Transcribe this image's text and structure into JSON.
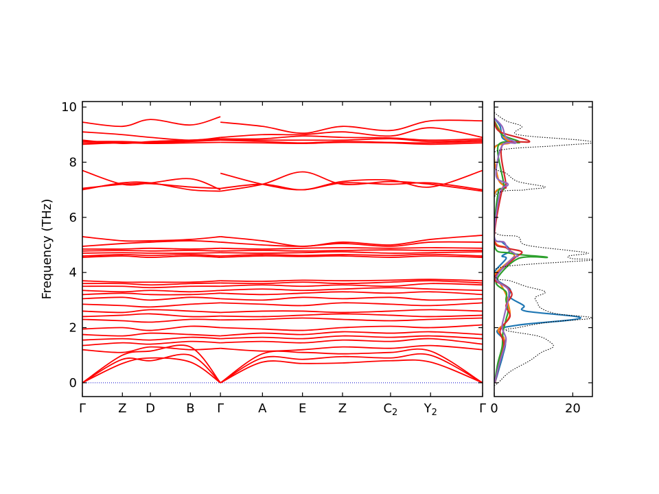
{
  "chart_data": [
    {
      "type": "line",
      "name": "phonon-band-structure",
      "ylabel": "Frequency (THz)",
      "ylim": [
        -0.5,
        10.2
      ],
      "yticks": [
        0,
        2,
        4,
        6,
        8,
        10
      ],
      "xlim": [
        0,
        10
      ],
      "kpoints": [
        {
          "label": "Γ",
          "x": 0
        },
        {
          "label": "Z",
          "x": 1
        },
        {
          "label": "D",
          "x": 1.7
        },
        {
          "label": "B",
          "x": 2.7
        },
        {
          "label": "Γ",
          "x": 3.45
        },
        {
          "label": "A",
          "x": 4.5
        },
        {
          "label": "E",
          "x": 5.5
        },
        {
          "label": "Z",
          "x": 6.5
        },
        {
          "label": "C",
          "sub": "2",
          "x": 7.7
        },
        {
          "label": "Y",
          "sub": "2",
          "x": 8.7
        },
        {
          "label": "Γ",
          "x": 10
        }
      ],
      "zero_line": {
        "y": 0,
        "color": "#0000cc",
        "style": "dotted"
      },
      "band_color": "#ff0000",
      "segments": [
        {
          "x": [
            0,
            1,
            1.7,
            2.7,
            3.45
          ],
          "bands": [
            [
              0,
              0.7,
              0.9,
              0.75,
              0
            ],
            [
              0,
              0.85,
              0.8,
              1.0,
              0
            ],
            [
              0,
              1.0,
              1.15,
              1.3,
              0
            ],
            [
              1.2,
              1.1,
              1.3,
              1.2,
              1.25
            ],
            [
              1.35,
              1.45,
              1.4,
              1.5,
              1.45
            ],
            [
              1.55,
              1.6,
              1.55,
              1.65,
              1.6
            ],
            [
              1.75,
              1.7,
              1.8,
              1.75,
              1.7
            ],
            [
              1.95,
              2.0,
              1.9,
              2.05,
              2.0
            ],
            [
              2.3,
              2.25,
              2.2,
              2.3,
              2.28
            ],
            [
              2.4,
              2.45,
              2.5,
              2.4,
              2.42
            ],
            [
              2.6,
              2.55,
              2.65,
              2.6,
              2.55
            ],
            [
              2.85,
              2.8,
              2.75,
              2.85,
              2.9
            ],
            [
              3.05,
              3.1,
              3.0,
              3.1,
              3.05
            ],
            [
              3.2,
              3.25,
              3.2,
              3.2,
              3.25
            ],
            [
              3.35,
              3.3,
              3.35,
              3.3,
              3.35
            ],
            [
              3.5,
              3.5,
              3.45,
              3.5,
              3.5
            ],
            [
              3.6,
              3.6,
              3.55,
              3.6,
              3.62
            ],
            [
              3.7,
              3.65,
              3.65,
              3.65,
              3.7
            ],
            [
              4.55,
              4.6,
              4.55,
              4.6,
              4.55
            ],
            [
              4.6,
              4.65,
              4.62,
              4.65,
              4.6
            ],
            [
              4.7,
              4.72,
              4.7,
              4.7,
              4.72
            ],
            [
              4.78,
              4.8,
              4.78,
              4.8,
              4.78
            ],
            [
              4.85,
              4.85,
              4.88,
              4.85,
              4.88
            ],
            [
              4.95,
              5.05,
              5.1,
              5.15,
              5.1
            ],
            [
              5.3,
              5.15,
              5.15,
              5.2,
              5.3
            ],
            [
              7.0,
              7.25,
              7.25,
              7.0,
              6.95
            ],
            [
              7.05,
              7.2,
              7.22,
              7.1,
              7.05
            ],
            [
              7.7,
              7.2,
              7.25,
              7.4,
              7.0
            ],
            [
              8.65,
              8.7,
              8.68,
              8.7,
              8.72
            ],
            [
              8.7,
              8.72,
              8.7,
              8.75,
              8.8
            ],
            [
              8.75,
              8.75,
              8.72,
              8.78,
              8.82
            ],
            [
              8.8,
              8.68,
              8.75,
              8.8,
              8.85
            ],
            [
              9.1,
              9.0,
              8.9,
              8.8,
              8.9
            ],
            [
              9.45,
              9.3,
              9.55,
              9.35,
              9.65
            ]
          ]
        },
        {
          "x": [
            3.45,
            4.5,
            5.5,
            6.5,
            7.7,
            8.7,
            10
          ],
          "bands": [
            [
              0,
              0.75,
              0.7,
              0.72,
              0.8,
              0.75,
              0
            ],
            [
              0,
              0.9,
              0.85,
              0.95,
              0.9,
              1.0,
              0
            ],
            [
              0,
              1.05,
              1.1,
              1.05,
              1.1,
              1.15,
              0
            ],
            [
              1.25,
              1.15,
              1.2,
              1.3,
              1.25,
              1.35,
              1.2
            ],
            [
              1.45,
              1.5,
              1.45,
              1.55,
              1.5,
              1.6,
              1.4
            ],
            [
              1.6,
              1.65,
              1.6,
              1.7,
              1.65,
              1.7,
              1.6
            ],
            [
              1.7,
              1.8,
              1.75,
              1.85,
              1.8,
              1.85,
              1.75
            ],
            [
              2.0,
              1.95,
              1.9,
              2.0,
              2.05,
              2.0,
              2.1
            ],
            [
              2.28,
              2.3,
              2.35,
              2.3,
              2.25,
              2.3,
              2.35
            ],
            [
              2.42,
              2.4,
              2.45,
              2.5,
              2.45,
              2.4,
              2.45
            ],
            [
              2.55,
              2.6,
              2.6,
              2.55,
              2.6,
              2.65,
              2.6
            ],
            [
              2.9,
              2.85,
              2.8,
              2.9,
              2.85,
              2.8,
              2.9
            ],
            [
              3.05,
              3.0,
              3.1,
              3.05,
              3.1,
              3.0,
              3.05
            ],
            [
              3.25,
              3.2,
              3.25,
              3.3,
              3.25,
              3.3,
              3.2
            ],
            [
              3.35,
              3.4,
              3.35,
              3.4,
              3.45,
              3.4,
              3.35
            ],
            [
              3.5,
              3.55,
              3.5,
              3.55,
              3.5,
              3.6,
              3.55
            ],
            [
              3.62,
              3.6,
              3.65,
              3.6,
              3.65,
              3.7,
              3.62
            ],
            [
              3.7,
              3.68,
              3.72,
              3.7,
              3.72,
              3.75,
              3.7
            ],
            [
              4.55,
              4.6,
              4.58,
              4.6,
              4.55,
              4.6,
              4.55
            ],
            [
              4.6,
              4.65,
              4.62,
              4.65,
              4.62,
              4.66,
              4.6
            ],
            [
              4.72,
              4.7,
              4.72,
              4.75,
              4.7,
              4.72,
              4.75
            ],
            [
              4.78,
              4.8,
              4.78,
              4.8,
              4.82,
              4.8,
              4.8
            ],
            [
              4.88,
              4.85,
              4.88,
              4.9,
              4.88,
              4.9,
              4.88
            ],
            [
              5.1,
              5.0,
              4.95,
              5.05,
              4.95,
              5.1,
              5.1
            ],
            [
              5.3,
              5.15,
              4.95,
              5.1,
              5.0,
              5.2,
              5.35
            ],
            [
              6.95,
              7.2,
              7.65,
              7.2,
              7.3,
              7.2,
              6.95
            ],
            [
              7.05,
              7.2,
              7.0,
              7.25,
              7.2,
              7.25,
              7.0
            ],
            [
              7.6,
              7.2,
              7.0,
              7.3,
              7.35,
              7.1,
              7.7
            ],
            [
              8.72,
              8.7,
              8.68,
              8.72,
              8.7,
              8.65,
              8.7
            ],
            [
              8.8,
              8.75,
              8.7,
              8.75,
              8.72,
              8.7,
              8.75
            ],
            [
              8.82,
              8.8,
              8.8,
              8.8,
              8.85,
              8.75,
              8.8
            ],
            [
              8.85,
              8.85,
              8.95,
              8.9,
              8.88,
              8.8,
              8.85
            ],
            [
              8.9,
              9.0,
              9.0,
              9.1,
              8.95,
              9.25,
              8.9
            ],
            [
              9.45,
              9.3,
              9.05,
              9.3,
              9.15,
              9.5,
              9.5
            ]
          ]
        }
      ]
    },
    {
      "type": "line",
      "name": "phonon-dos",
      "xlim": [
        0,
        25
      ],
      "xticks": [
        0,
        20
      ],
      "ylim": [
        -0.5,
        10.2
      ],
      "total": {
        "color": "#000000",
        "style": "dotted",
        "freq": [
          -0.1,
          0.0,
          0.4,
          0.8,
          1.1,
          1.3,
          1.5,
          1.7,
          1.9,
          2.0,
          2.2,
          2.35,
          2.5,
          2.7,
          2.9,
          3.1,
          3.3,
          3.5,
          3.7,
          3.8,
          4.2,
          4.45,
          4.5,
          4.6,
          4.7,
          4.8,
          5.0,
          5.3,
          5.5,
          6.8,
          7.0,
          7.1,
          7.3,
          7.6,
          7.8,
          8.4,
          8.6,
          8.7,
          8.8,
          9.0,
          9.3,
          9.5,
          9.8
        ],
        "dos": [
          0.0,
          1.0,
          4.0,
          9.0,
          12.0,
          15.0,
          14.0,
          11.0,
          3.0,
          6.0,
          14.0,
          25.0,
          16.0,
          12.0,
          11.0,
          10.5,
          13.0,
          8.0,
          4.0,
          0.5,
          2.0,
          25.0,
          20.0,
          19.0,
          24.0,
          19.0,
          8.0,
          6.0,
          0.0,
          0.3,
          8.0,
          13.0,
          6.0,
          3.0,
          0.0,
          0.5,
          16.0,
          25.0,
          22.0,
          6.0,
          7.0,
          3.0,
          0.0
        ]
      },
      "partials": [
        {
          "color": "#1f77b4",
          "freq": [
            0.0,
            0.5,
            1.0,
            1.5,
            1.9,
            2.1,
            2.35,
            2.6,
            2.8,
            3.1,
            3.4,
            3.7,
            4.0,
            4.5,
            4.6,
            4.8,
            5.1,
            5.3,
            6.8,
            7.1,
            7.4,
            8.5,
            8.7,
            8.9,
            9.3,
            9.6
          ],
          "dos": [
            0.2,
            1.2,
            2.2,
            2.8,
            0.8,
            6.5,
            22.0,
            8.0,
            7.5,
            4.0,
            4.0,
            1.0,
            0.0,
            3.0,
            2.0,
            4.0,
            2.0,
            0.0,
            0.0,
            3.0,
            1.0,
            0.0,
            3.5,
            2.0,
            1.5,
            0.0
          ]
        },
        {
          "color": "#ff7f0e",
          "freq": [
            0.0,
            0.6,
            1.1,
            1.6,
            1.9,
            2.2,
            2.5,
            2.9,
            3.2,
            3.6,
            3.9,
            4.5,
            4.65,
            4.9,
            5.2,
            6.8,
            7.1,
            7.4,
            8.5,
            8.7,
            8.9,
            9.5
          ],
          "dos": [
            0.2,
            1.0,
            1.8,
            2.5,
            1.0,
            3.0,
            4.0,
            3.5,
            3.0,
            1.5,
            0.0,
            4.5,
            5.0,
            3.0,
            0.0,
            0.0,
            2.5,
            1.0,
            0.0,
            4.0,
            2.5,
            0.0
          ]
        },
        {
          "color": "#2ca02c",
          "freq": [
            0.0,
            0.7,
            1.3,
            1.8,
            2.3,
            2.6,
            3.0,
            3.3,
            3.7,
            4.5,
            4.55,
            4.7,
            5.0,
            6.9,
            7.1,
            8.6,
            8.72,
            9.0,
            9.5
          ],
          "dos": [
            0.1,
            0.9,
            2.0,
            2.2,
            3.0,
            3.5,
            3.0,
            3.0,
            0.5,
            6.0,
            13.5,
            4.0,
            0.0,
            1.0,
            2.5,
            1.0,
            6.5,
            2.0,
            0.0
          ]
        },
        {
          "color": "#d62728",
          "freq": [
            0.0,
            0.8,
            1.4,
            1.9,
            2.4,
            2.8,
            3.2,
            3.5,
            3.8,
            4.5,
            4.75,
            4.9,
            5.2,
            7.0,
            7.15,
            8.6,
            8.75,
            9.1,
            9.5
          ],
          "dos": [
            0.1,
            1.5,
            2.5,
            1.5,
            4.0,
            3.0,
            4.5,
            3.0,
            0.0,
            5.0,
            7.0,
            3.0,
            0.0,
            2.0,
            3.0,
            2.0,
            9.0,
            1.5,
            0.0
          ]
        },
        {
          "color": "#9467bd",
          "freq": [
            0.0,
            0.7,
            1.2,
            1.6,
            2.0,
            2.4,
            2.7,
            3.0,
            3.4,
            3.8,
            4.5,
            4.6,
            4.85,
            5.1,
            5.3,
            6.9,
            7.2,
            7.5,
            8.6,
            8.7,
            8.9,
            9.3,
            9.6
          ],
          "dos": [
            0.1,
            1.3,
            2.4,
            3.0,
            2.0,
            2.5,
            3.0,
            3.5,
            3.5,
            0.5,
            4.5,
            6.0,
            3.5,
            2.5,
            0.0,
            1.5,
            3.5,
            0.5,
            2.0,
            5.5,
            3.0,
            2.0,
            0.0
          ]
        }
      ]
    }
  ]
}
